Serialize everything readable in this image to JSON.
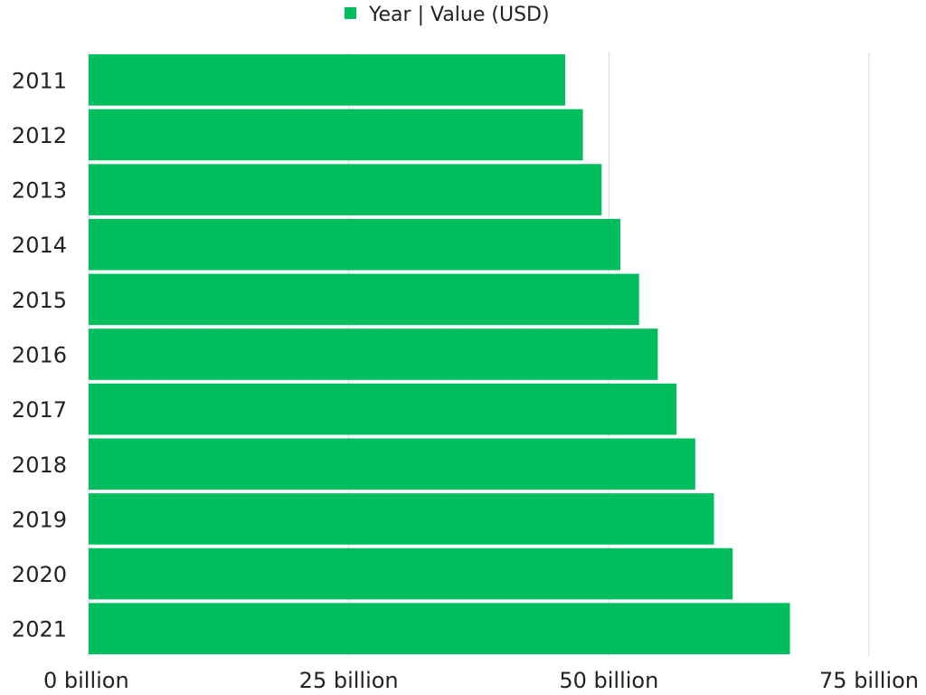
{
  "legend": {
    "label": "Year | Value (USD)"
  },
  "chart_data": {
    "type": "bar",
    "orientation": "horizontal",
    "categories": [
      "2011",
      "2012",
      "2013",
      "2014",
      "2015",
      "2016",
      "2017",
      "2018",
      "2019",
      "2020",
      "2021"
    ],
    "series": [
      {
        "name": "Year | Value (USD)",
        "values": [
          45.8,
          47.5,
          49.3,
          51.1,
          52.9,
          54.7,
          56.5,
          58.3,
          60.1,
          61.9,
          67.4
        ],
        "color": "#00be5e"
      }
    ],
    "xlim": [
      0,
      75
    ],
    "xticks": [
      {
        "value": 0,
        "label": "0 billion"
      },
      {
        "value": 25,
        "label": "25 billion"
      },
      {
        "value": 50,
        "label": "50 billion"
      },
      {
        "value": 75,
        "label": "75 billion"
      }
    ],
    "grid": true,
    "legend_position": "top-center"
  }
}
